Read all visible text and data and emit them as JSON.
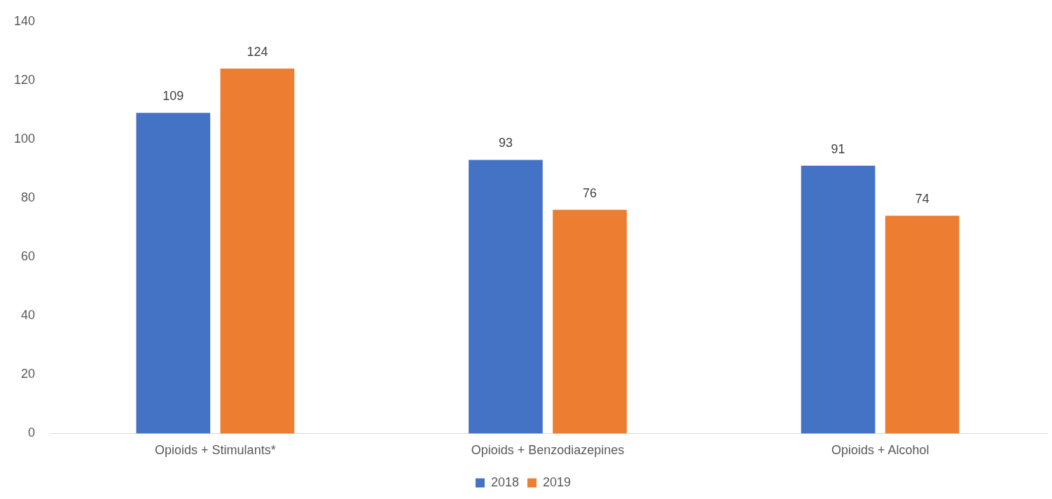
{
  "chart_data": {
    "type": "bar",
    "categories": [
      "Opioids + Stimulants*",
      "Opioids + Benzodiazepines",
      "Opioids + Alcohol"
    ],
    "series": [
      {
        "name": "2018",
        "color": "#4472c4",
        "values": [
          109,
          93,
          91
        ]
      },
      {
        "name": "2019",
        "color": "#ed7d31",
        "values": [
          124,
          76,
          74
        ]
      }
    ],
    "ylim": [
      0,
      140
    ],
    "yticks": [
      0,
      20,
      40,
      60,
      80,
      100,
      120,
      140
    ],
    "grid": false,
    "legend": "bottom",
    "data_labels": true
  }
}
